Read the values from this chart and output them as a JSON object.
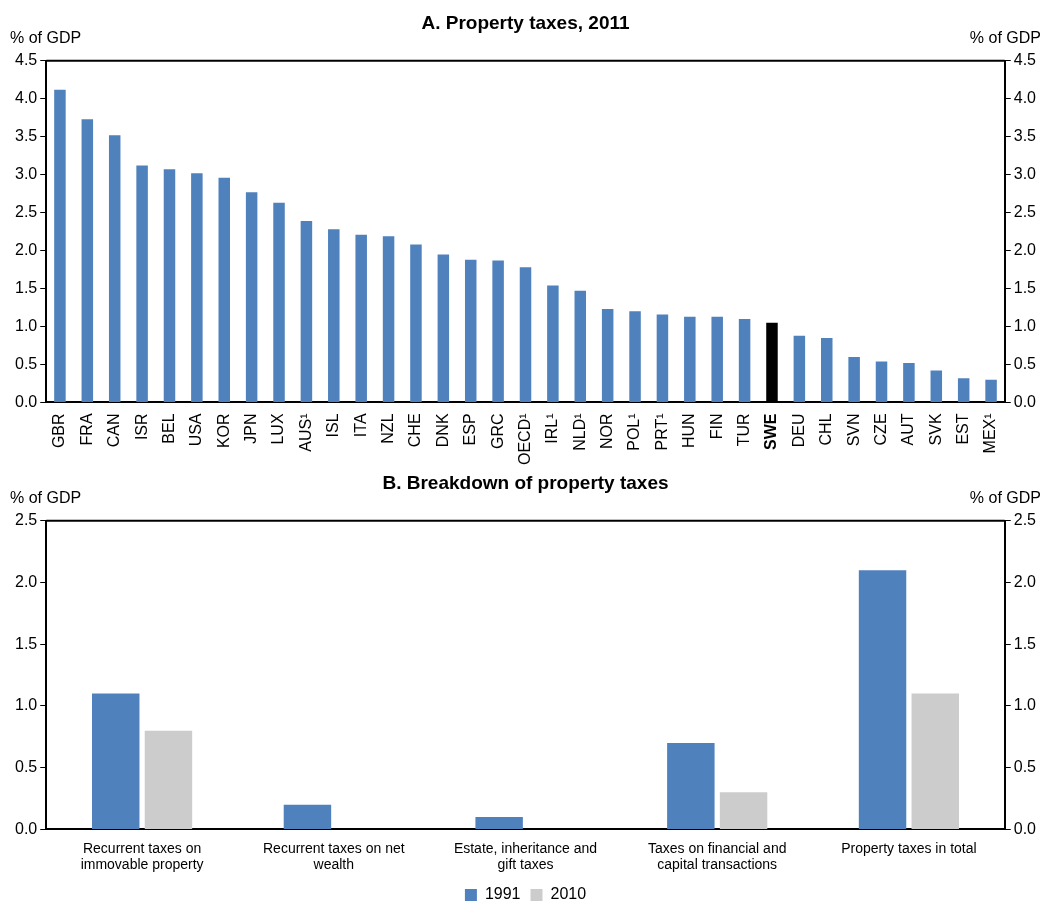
{
  "chart_data": [
    {
      "type": "bar",
      "title": "A. Property taxes, 2011",
      "ylabel": "% of GDP",
      "y2label": "% of GDP",
      "categories": [
        "GBR",
        "FRA",
        "CAN",
        "ISR",
        "BEL",
        "USA",
        "KOR",
        "JPN",
        "LUX",
        "AUS¹",
        "ISL",
        "ITA",
        "NZL",
        "CHE",
        "DNK",
        "ESP",
        "GRC",
        "OECD¹",
        "IRL¹",
        "NLD¹",
        "NOR",
        "POL¹",
        "PRT¹",
        "HUN",
        "FIN",
        "TUR",
        "SWE",
        "DEU",
        "CHL",
        "SVN",
        "CZE",
        "AUT",
        "SVK",
        "EST",
        "MEX¹"
      ],
      "series": [
        {
          "color": "#4f81bd",
          "values": [
            4.12,
            3.73,
            3.52,
            3.12,
            3.07,
            3.02,
            2.96,
            2.77,
            2.63,
            2.39,
            2.28,
            2.21,
            2.19,
            2.08,
            1.95,
            1.88,
            1.87,
            1.78,
            1.54,
            1.47,
            1.23,
            1.2,
            1.16,
            1.13,
            1.13,
            1.1,
            1.05,
            0.88,
            0.85,
            0.6,
            0.54,
            0.52,
            0.42,
            0.32,
            0.3
          ],
          "colors": [
            "#4f81bd",
            "#4f81bd",
            "#4f81bd",
            "#4f81bd",
            "#4f81bd",
            "#4f81bd",
            "#4f81bd",
            "#4f81bd",
            "#4f81bd",
            "#4f81bd",
            "#4f81bd",
            "#4f81bd",
            "#4f81bd",
            "#4f81bd",
            "#4f81bd",
            "#4f81bd",
            "#4f81bd",
            "#4f81bd",
            "#4f81bd",
            "#4f81bd",
            "#4f81bd",
            "#4f81bd",
            "#4f81bd",
            "#4f81bd",
            "#4f81bd",
            "#4f81bd",
            "#000000",
            "#4f81bd",
            "#4f81bd",
            "#4f81bd",
            "#4f81bd",
            "#4f81bd",
            "#4f81bd",
            "#4f81bd",
            "#4f81bd"
          ]
        }
      ],
      "ylim": [
        0,
        4.5
      ],
      "yticks": [
        {
          "value": 0,
          "label": "0.0"
        },
        {
          "value": 0.5,
          "label": "0.5"
        },
        {
          "value": 1,
          "label": "1.0"
        },
        {
          "value": 1.5,
          "label": "1.5"
        },
        {
          "value": 2,
          "label": "2.0"
        },
        {
          "value": 2.5,
          "label": "2.5"
        },
        {
          "value": 3,
          "label": "3.0"
        },
        {
          "value": 3.5,
          "label": "3.5"
        },
        {
          "value": 4,
          "label": "4.0"
        },
        {
          "value": 4.5,
          "label": "4.5"
        }
      ],
      "y2lim": [
        0,
        4.5
      ],
      "y2ticks": [
        {
          "value": 0,
          "label": "0.0"
        },
        {
          "value": 0.5,
          "label": "0.5"
        },
        {
          "value": 1,
          "label": "1.0"
        },
        {
          "value": 1.5,
          "label": "1.5"
        },
        {
          "value": 2,
          "label": "2.0"
        },
        {
          "value": 2.5,
          "label": "2.5"
        },
        {
          "value": 3,
          "label": "3.0"
        },
        {
          "value": 3.5,
          "label": "3.5"
        },
        {
          "value": 4,
          "label": "4.0"
        },
        {
          "value": 4.5,
          "label": "4.5"
        }
      ],
      "grid": false
    },
    {
      "type": "bar",
      "title": "B. Breakdown of property taxes",
      "ylabel": "% of GDP",
      "y2label": "% of GDP",
      "categories": [
        "Recurrent taxes on immovable property",
        "Recurrent taxes on net wealth",
        "Estate, inheritance and gift taxes",
        "Taxes on financial and capital transactions",
        "Property taxes in total"
      ],
      "series": [
        {
          "name": "1991",
          "color": "#4f81bd",
          "values": [
            1.1,
            0.2,
            0.1,
            0.7,
            2.1
          ]
        },
        {
          "name": "2010",
          "color": "#cccccc",
          "values": [
            0.8,
            0,
            0,
            0.3,
            1.1
          ]
        }
      ],
      "ylim": [
        0,
        2.5
      ],
      "yticks": [
        {
          "value": 0,
          "label": "0.0"
        },
        {
          "value": 0.5,
          "label": "0.5"
        },
        {
          "value": 1,
          "label": "1.0"
        },
        {
          "value": 1.5,
          "label": "1.5"
        },
        {
          "value": 2,
          "label": "2.0"
        },
        {
          "value": 2.5,
          "label": "2.5"
        }
      ],
      "y2lim": [
        0,
        2.5
      ],
      "y2ticks": [
        {
          "value": 0,
          "label": "0.0"
        },
        {
          "value": 0.5,
          "label": "0.5"
        },
        {
          "value": 1,
          "label": "1.0"
        },
        {
          "value": 1.5,
          "label": "1.5"
        },
        {
          "value": 2,
          "label": "2.0"
        },
        {
          "value": 2.5,
          "label": "2.5"
        }
      ],
      "grid": false,
      "legend": "bottom"
    }
  ]
}
